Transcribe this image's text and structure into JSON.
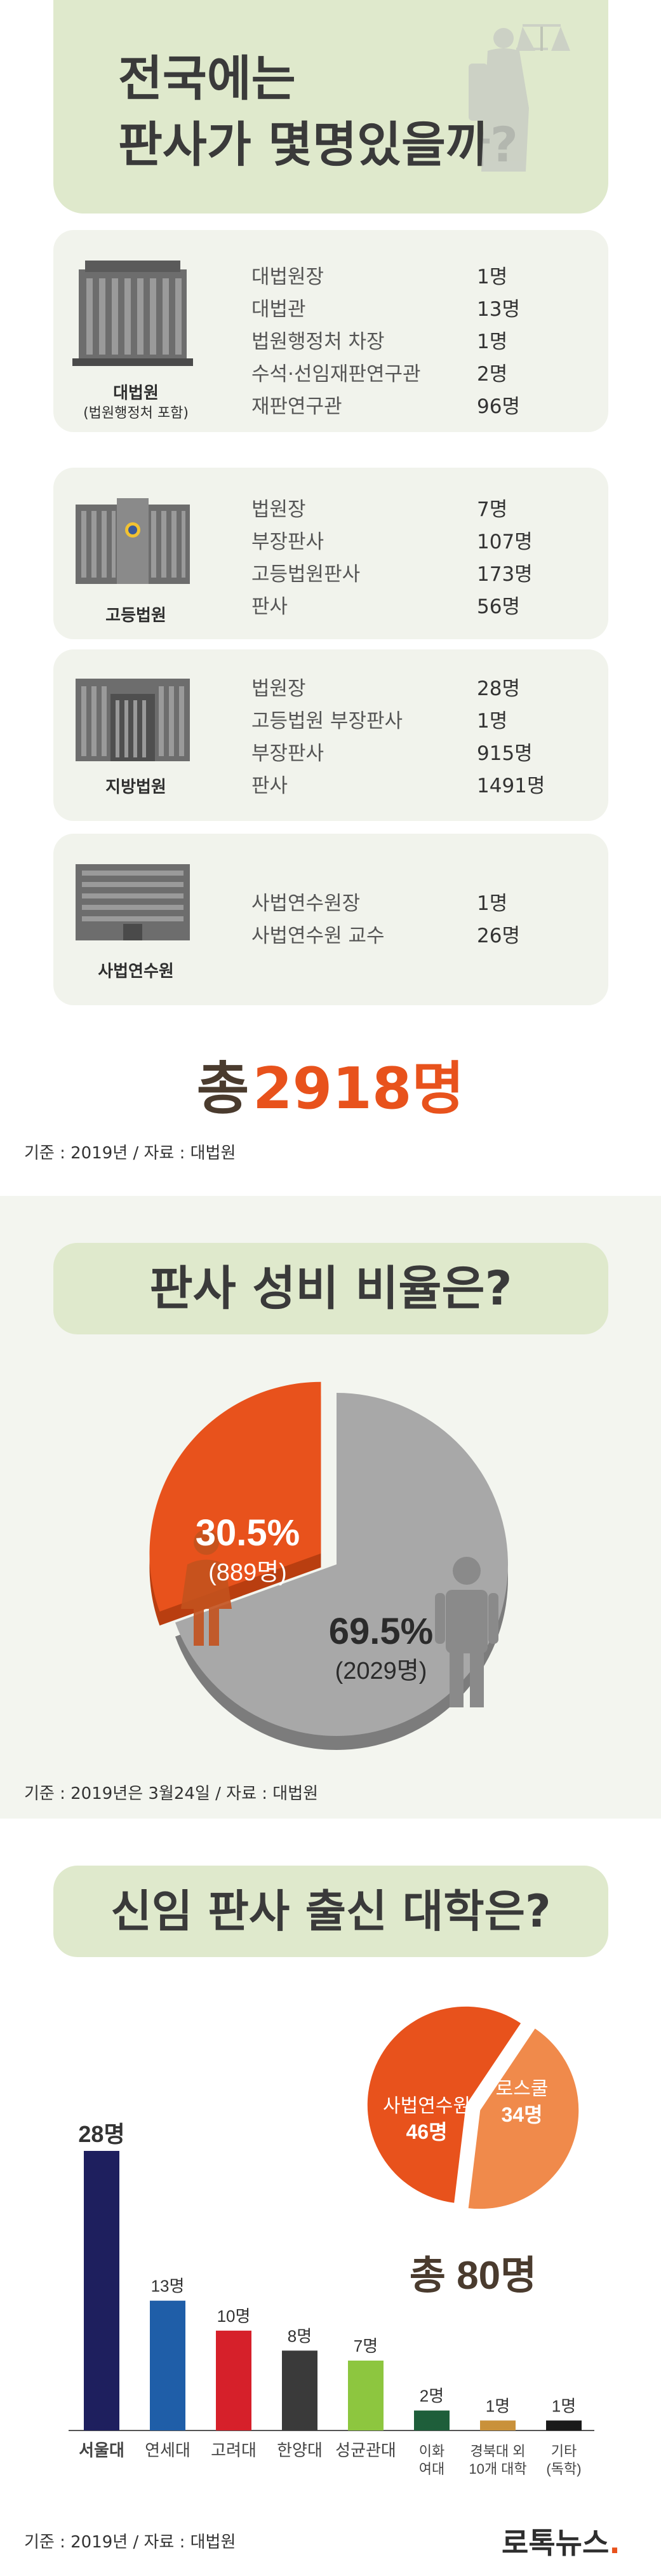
{
  "section1": {
    "title_line1": "전국에는",
    "title_line2": "판사가 몇명있을까?",
    "courts": [
      {
        "name": "대법원",
        "sub": "(법원행정처 포함)",
        "rows": [
          {
            "pos": "대법원장",
            "count": "1명"
          },
          {
            "pos": "대법관",
            "count": "13명"
          },
          {
            "pos": "법원행정처 차장",
            "count": "1명"
          },
          {
            "pos": "수석·선임재판연구관",
            "count": "2명"
          },
          {
            "pos": "재판연구관",
            "count": "96명"
          }
        ]
      },
      {
        "name": "고등법원",
        "rows": [
          {
            "pos": "법원장",
            "count": "7명"
          },
          {
            "pos": "부장판사",
            "count": "107명"
          },
          {
            "pos": "고등법원판사",
            "count": "173명"
          },
          {
            "pos": "판사",
            "count": "56명"
          }
        ]
      },
      {
        "name": "지방법원",
        "rows": [
          {
            "pos": "법원장",
            "count": "28명"
          },
          {
            "pos": "고등법원 부장판사",
            "count": "1명"
          },
          {
            "pos": "부장판사",
            "count": "915명"
          },
          {
            "pos": "판사",
            "count": "1491명"
          }
        ]
      },
      {
        "name": "사법연수원",
        "rows": [
          {
            "pos": "사법연수원장",
            "count": "1명"
          },
          {
            "pos": "사법연수원 교수",
            "count": "26명"
          }
        ]
      }
    ],
    "total_label": "총",
    "total_value": "2918명",
    "source": "기준 : 2019년 / 자료 : 대법원"
  },
  "section2": {
    "title": "판사 성비 비율은?",
    "source": "기준 : 2019년은 3월24일 / 자료 : 대법원",
    "chart_data": {
      "type": "pie",
      "title": "",
      "slices": [
        {
          "label": "30.5%",
          "sub": "(889명)",
          "value": 30.5,
          "count": 889,
          "color": "#e8521c"
        },
        {
          "label": "69.5%",
          "sub": "(2029명)",
          "value": 69.5,
          "count": 2029,
          "color": "#a8a8a8"
        }
      ]
    }
  },
  "section3": {
    "title": "신임 판사 출신 대학은?",
    "source": "기준 : 2019년 / 자료 : 대법원",
    "logo_text": "로톡뉴스",
    "logo_dot": ".",
    "chart_data": [
      {
        "type": "bar",
        "title": "",
        "categories": [
          "서울대",
          "연세대",
          "고려대",
          "한양대",
          "성균관대",
          "이화\n여대",
          "경북대 외\n10개 대학",
          "기타\n(독학)"
        ],
        "value_labels": [
          "28명",
          "13명",
          "10명",
          "8명",
          "7명",
          "2명",
          "1명",
          "1명"
        ],
        "values": [
          28,
          13,
          10,
          8,
          7,
          2,
          1,
          1
        ],
        "colors": [
          "#1e1f5e",
          "#1f5ea8",
          "#d6202a",
          "#3a3a3a",
          "#8dc63f",
          "#1e5e3a",
          "#c9913a",
          "#1a1a1a"
        ],
        "ylim": [
          0,
          28
        ]
      },
      {
        "type": "pie",
        "title": "",
        "slices": [
          {
            "label": "사법연수원",
            "value_label": "46명",
            "value": 46,
            "color": "#e8521c"
          },
          {
            "label": "로스쿨",
            "value_label": "34명",
            "value": 34,
            "color": "#f08a4b"
          }
        ],
        "total_label": "총 80명"
      }
    ]
  }
}
